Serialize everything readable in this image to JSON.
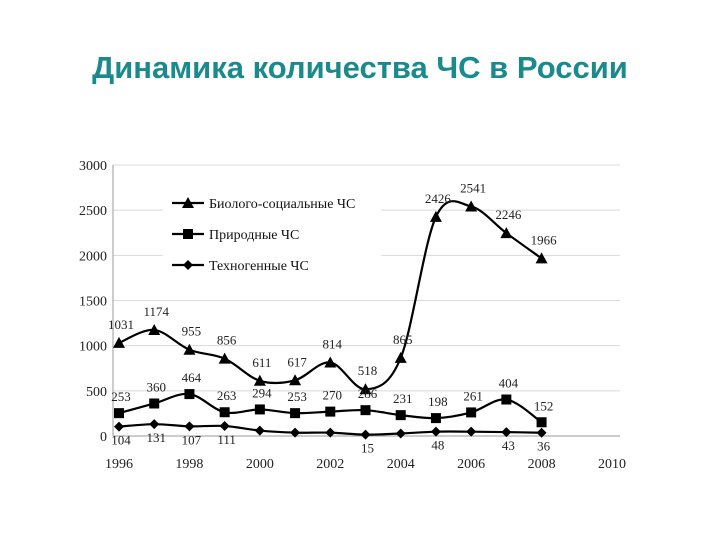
{
  "title": "Динамика количества ЧС в России",
  "chart_data": {
    "type": "line",
    "title": "",
    "xlabel": "",
    "ylabel": "",
    "xlim": [
      1996,
      2010
    ],
    "ylim": [
      0,
      3000
    ],
    "x_ticks": [
      1996,
      1998,
      2000,
      2002,
      2004,
      2006,
      2008,
      2010
    ],
    "y_ticks": [
      0,
      500,
      1000,
      1500,
      2000,
      2500,
      3000
    ],
    "grid": "horizontal",
    "legend_position": "top-left",
    "x": [
      1996,
      1997,
      1998,
      1999,
      2000,
      2001,
      2002,
      2003,
      2004,
      2005,
      2006,
      2007,
      2008
    ],
    "series": [
      {
        "name": "Биолого-социальные ЧС",
        "marker": "triangle",
        "color": "#000000",
        "values": [
          1031,
          1174,
          955,
          856,
          611,
          617,
          814,
          518,
          865,
          2426,
          2541,
          2246,
          1966
        ],
        "labels": [
          "1031",
          "1174",
          "955",
          "856",
          "611",
          "617",
          "814",
          "518",
          "865",
          "2426",
          "2541",
          "2246",
          "1966"
        ]
      },
      {
        "name": "Природные ЧС",
        "marker": "square",
        "color": "#000000",
        "values": [
          253,
          360,
          464,
          263,
          294,
          253,
          270,
          286,
          231,
          198,
          261,
          404,
          152
        ],
        "labels": [
          "253",
          "360",
          "464",
          "263",
          "294",
          "253",
          "270",
          "286",
          "231",
          "198",
          "261",
          "404",
          "152"
        ]
      },
      {
        "name": "Техногенные ЧС",
        "marker": "diamond",
        "color": "#000000",
        "values": [
          104,
          131,
          107,
          111,
          60,
          37,
          37,
          15,
          28,
          48,
          48,
          43,
          36
        ],
        "labels": [
          "104",
          "131",
          "107",
          "111",
          "",
          "",
          "",
          "15",
          "",
          "48",
          "",
          "43",
          "36"
        ]
      }
    ]
  }
}
